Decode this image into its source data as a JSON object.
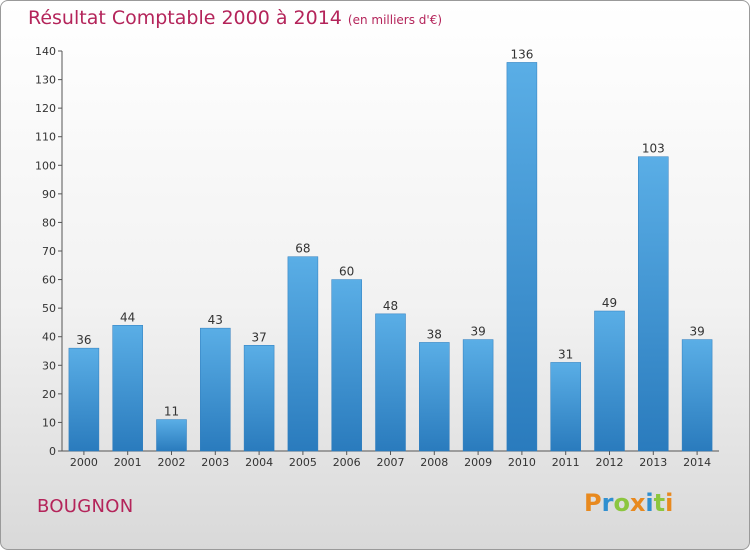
{
  "header": {
    "title": "Résultat Comptable 2000 à 2014",
    "subtitle": "(en milliers d'€)"
  },
  "footer": {
    "city": "BOUGNON",
    "logo_text": "Proxiti",
    "logo_colors": [
      "#e8891e",
      "#2f8fd0",
      "#8cc63f"
    ]
  },
  "chart_data": {
    "type": "bar",
    "title": "Résultat Comptable 2000 à 2014",
    "subtitle": "(en milliers d'€)",
    "xlabel": "",
    "ylabel": "",
    "categories": [
      "2000",
      "2001",
      "2002",
      "2003",
      "2004",
      "2005",
      "2006",
      "2007",
      "2008",
      "2009",
      "2010",
      "2011",
      "2012",
      "2013",
      "2014"
    ],
    "values": [
      36,
      44,
      11,
      43,
      37,
      68,
      60,
      48,
      38,
      39,
      136,
      31,
      49,
      103,
      39
    ],
    "ylim": [
      0,
      140
    ],
    "yticks": [
      0,
      10,
      20,
      30,
      40,
      50,
      60,
      70,
      80,
      90,
      100,
      110,
      120,
      130,
      140
    ],
    "grid": false,
    "data_labels": true,
    "bar_color": "#3d95d6",
    "bar_color_light": "#5aaee6",
    "bar_color_dark": "#2a7bbd"
  }
}
